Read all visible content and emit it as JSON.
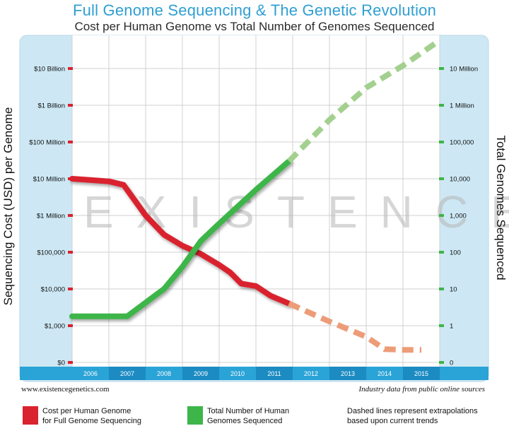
{
  "header": {
    "title": "Full Genome Sequencing & The Genetic Revolution",
    "subtitle": "Cost per Human Genome vs Total Number of Genomes Sequenced"
  },
  "footer": {
    "source_left": "www.existencegenetics.com",
    "source_right": "Industry data from public online sources"
  },
  "legend": {
    "cost": {
      "line1": "Cost per Human Genome",
      "line2": "for Full Genome Sequencing",
      "color": "#d9232e"
    },
    "genomes": {
      "line1": "Total Number of Human",
      "line2": "Genomes Sequenced",
      "color": "#3db549"
    },
    "note": {
      "line1": "Dashed lines represent extrapolations",
      "line2": "based upon current trends"
    }
  },
  "watermark": "EXISTENCE",
  "chart_data": {
    "type": "line",
    "title": "Full Genome Sequencing & The Genetic Revolution",
    "subtitle": "Cost per Human Genome vs Total Number of Genomes Sequenced",
    "x_categories": [
      "2006",
      "2007",
      "2008",
      "2009",
      "2010",
      "2011",
      "2012",
      "2013",
      "2014",
      "2015"
    ],
    "ylabel_left": "Sequencing Cost (USD) per Genome",
    "ylabel_right": "Total Genomes Sequenced",
    "y_left_scale": "log",
    "y_right_scale": "log",
    "y_left_ticks": [
      "$0",
      "$1,000",
      "$10,000",
      "$100,000",
      "$1 Million",
      "$10 Million",
      "$100 Million",
      "$1 Billion",
      "$10 Billion"
    ],
    "y_right_ticks": [
      "0",
      "1",
      "10",
      "100",
      "1,000",
      "10,000",
      "100,000",
      "1 Million",
      "10 Million"
    ],
    "grid": true,
    "colors": {
      "panel_bg": "#cde8f4",
      "plot_bg": "#ffffff",
      "grid": "#d0d0d0",
      "year_band": "#2aa3d6",
      "tick_mark": "#d9232e",
      "right_tick_mark": "#3db549"
    },
    "series": [
      {
        "name": "Cost per Human Genome",
        "axis": "left",
        "color": "#d9232e",
        "points": [
          {
            "year": 2006.0,
            "value": 10000000
          },
          {
            "year": 2007.0,
            "value": 8500000
          },
          {
            "year": 2007.4,
            "value": 6800000
          },
          {
            "year": 2008.0,
            "value": 1000000
          },
          {
            "year": 2008.5,
            "value": 300000
          },
          {
            "year": 2009.0,
            "value": 150000
          },
          {
            "year": 2009.5,
            "value": 90000
          },
          {
            "year": 2010.0,
            "value": 45000
          },
          {
            "year": 2010.3,
            "value": 28000
          },
          {
            "year": 2010.6,
            "value": 14000
          },
          {
            "year": 2011.0,
            "value": 12000
          },
          {
            "year": 2011.4,
            "value": 6500
          },
          {
            "year": 2011.9,
            "value": 4000
          }
        ]
      },
      {
        "name": "Cost per Human Genome (extrapolated)",
        "axis": "left",
        "color": "#ed9c78",
        "dashed": true,
        "points": [
          {
            "year": 2011.9,
            "value": 4000
          },
          {
            "year": 2013.0,
            "value": 1300
          },
          {
            "year": 2014.0,
            "value": 500
          },
          {
            "year": 2014.5,
            "value": 230
          },
          {
            "year": 2015.0,
            "value": 220
          },
          {
            "year": 2015.5,
            "value": 220
          }
        ]
      },
      {
        "name": "Total Number of Human Genomes Sequenced",
        "axis": "right",
        "color": "#3db549",
        "points": [
          {
            "year": 2006.0,
            "value": 1.8
          },
          {
            "year": 2007.0,
            "value": 1.8
          },
          {
            "year": 2007.5,
            "value": 1.8
          },
          {
            "year": 2008.5,
            "value": 10
          },
          {
            "year": 2009.0,
            "value": 40
          },
          {
            "year": 2009.5,
            "value": 200
          },
          {
            "year": 2010.0,
            "value": 600
          },
          {
            "year": 2011.0,
            "value": 5000
          },
          {
            "year": 2011.9,
            "value": 30000
          }
        ]
      },
      {
        "name": "Total Number of Human Genomes Sequenced (extrapolated)",
        "axis": "right",
        "color": "#a3d08f",
        "dashed": true,
        "points": [
          {
            "year": 2011.9,
            "value": 30000
          },
          {
            "year": 2013.0,
            "value": 400000
          },
          {
            "year": 2014.0,
            "value": 3000000
          },
          {
            "year": 2015.0,
            "value": 12000000
          },
          {
            "year": 2015.9,
            "value": 50000000
          }
        ]
      }
    ]
  }
}
